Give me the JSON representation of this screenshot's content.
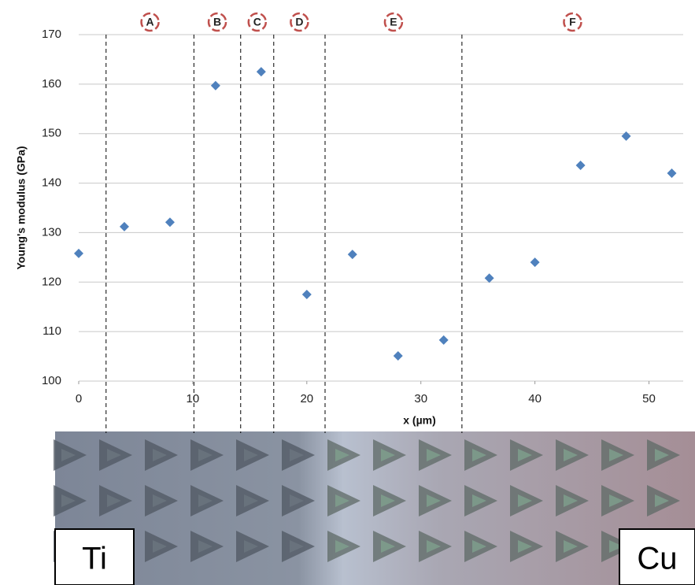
{
  "chart_data": {
    "type": "scatter",
    "y_label": "Young's modulus (GPa)",
    "x_label": "x (µm)",
    "x": [
      0,
      4,
      8,
      12,
      16,
      20,
      24,
      28,
      32,
      36,
      40,
      44,
      48,
      52
    ],
    "series": [
      {
        "color": "#4f81bd",
        "values": [
          125.8,
          131.2,
          132.1,
          159.7,
          162.5,
          117.5,
          125.6,
          105.1,
          108.3,
          120.8,
          124.0,
          143.6,
          149.5,
          142.0
        ]
      }
    ],
    "xlim": [
      0,
      53
    ],
    "xticks": [
      0,
      10,
      20,
      30,
      40,
      50
    ],
    "ylim": [
      100,
      170
    ],
    "yticks": [
      100,
      110,
      120,
      130,
      140,
      150,
      160,
      170
    ],
    "grid": true,
    "boundaries": [
      2.4,
      10.1,
      14.2,
      17.1,
      21.6,
      33.6
    ],
    "regions": [
      "A",
      "B",
      "C",
      "D",
      "E",
      "F"
    ],
    "annotations": [
      "Ti",
      "Cu"
    ]
  }
}
